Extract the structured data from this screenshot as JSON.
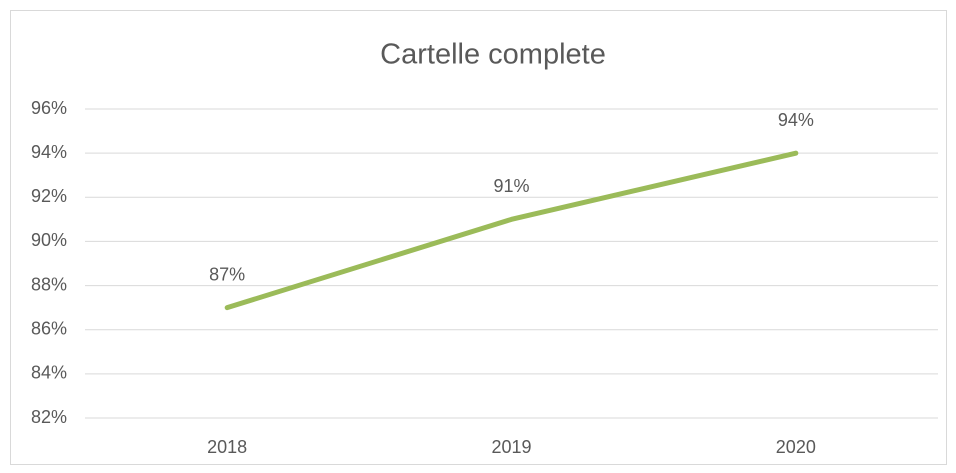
{
  "chart_data": {
    "type": "line",
    "title": "Cartelle complete",
    "categories": [
      "2018",
      "2019",
      "2020"
    ],
    "series": [
      {
        "color": "#9bbb59",
        "values": [
          87,
          91,
          94
        ],
        "value_labels": [
          "87%",
          "91%",
          "94%"
        ]
      }
    ],
    "ylim": [
      82,
      96
    ],
    "yticks": [
      {
        "value": 82,
        "label": "82%"
      },
      {
        "value": 84,
        "label": "84%"
      },
      {
        "value": 86,
        "label": "86%"
      },
      {
        "value": 88,
        "label": "88%"
      },
      {
        "value": 90,
        "label": "90%"
      },
      {
        "value": 92,
        "label": "92%"
      },
      {
        "value": 94,
        "label": "94%"
      },
      {
        "value": 96,
        "label": "96%"
      }
    ],
    "grid": true
  }
}
